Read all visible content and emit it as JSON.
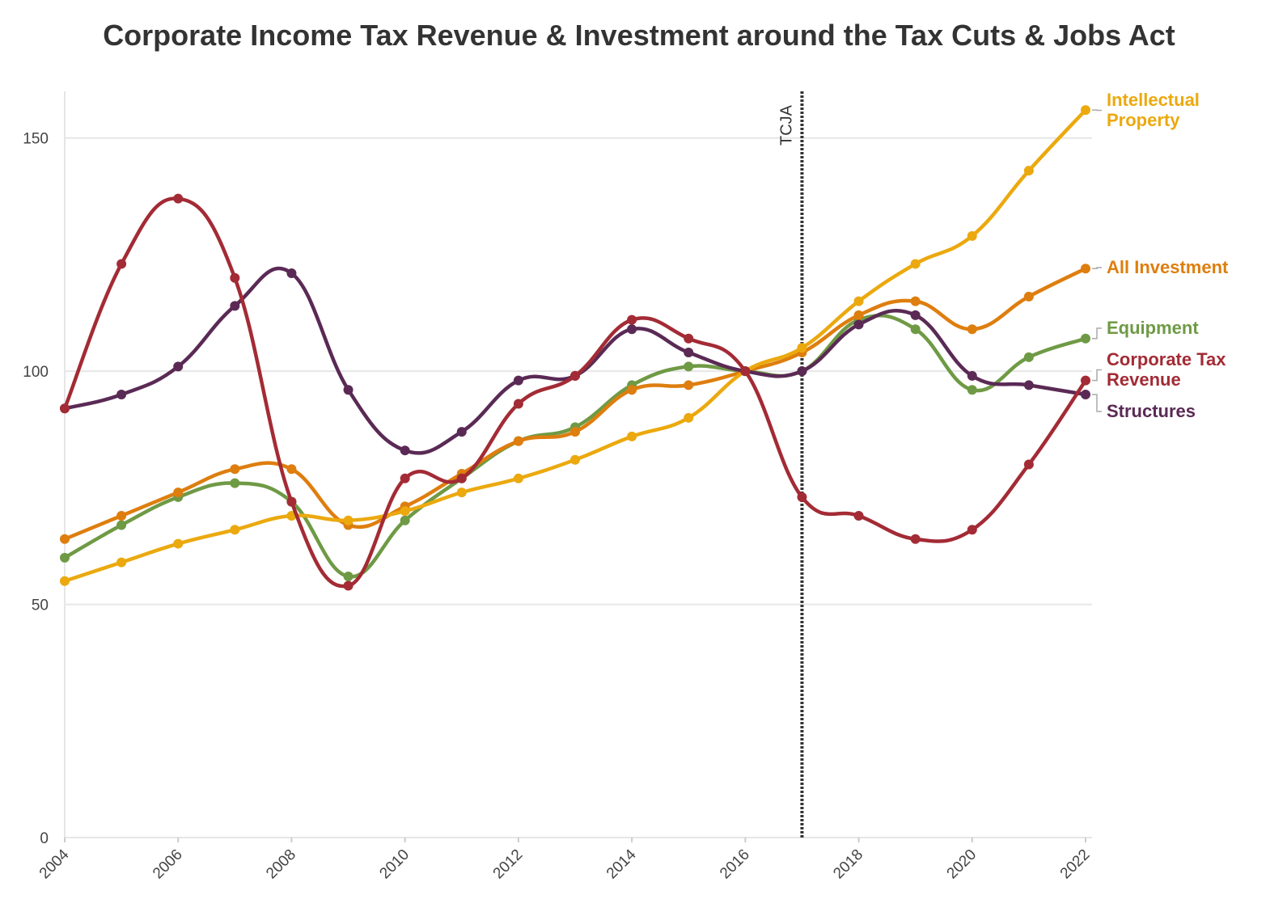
{
  "chart_data": {
    "type": "line",
    "title": "Corporate Income Tax Revenue & Investment around the Tax Cuts & Jobs Act",
    "xlabel": "",
    "ylabel": "",
    "x": [
      2004,
      2005,
      2006,
      2007,
      2008,
      2009,
      2010,
      2011,
      2012,
      2013,
      2014,
      2015,
      2016,
      2017,
      2018,
      2019,
      2020,
      2021,
      2022
    ],
    "xlim": [
      2004,
      2022
    ],
    "ylim": [
      0,
      160
    ],
    "x_ticks": [
      "2004",
      "2006",
      "2008",
      "2010",
      "2012",
      "2014",
      "2016",
      "2018",
      "2020",
      "2022"
    ],
    "y_ticks": [
      "0",
      "50",
      "100",
      "150"
    ],
    "grid": true,
    "legend": "direct labels at right end of lines",
    "annotations": [
      {
        "text": "TCJA",
        "x": 2017,
        "style": "dotted vertical line"
      }
    ],
    "series": [
      {
        "name": "Equipment",
        "label_lines": [
          "Equipment"
        ],
        "color": "#6f9a45",
        "values": [
          60,
          67,
          73,
          76,
          72,
          56,
          68,
          77,
          85,
          88,
          97,
          101,
          100,
          100,
          111,
          109,
          96,
          103,
          107
        ]
      },
      {
        "name": "All Investment",
        "label_lines": [
          "All Investment"
        ],
        "color": "#de7e0e",
        "values": [
          64,
          69,
          74,
          79,
          79,
          67,
          71,
          78,
          85,
          87,
          96,
          97,
          100,
          104,
          112,
          115,
          109,
          116,
          122
        ]
      },
      {
        "name": "Intellectual Property",
        "label_lines": [
          "Intellectual",
          "Property"
        ],
        "color": "#eba90e",
        "values": [
          55,
          59,
          63,
          66,
          69,
          68,
          70,
          74,
          77,
          81,
          86,
          90,
          100,
          105,
          115,
          123,
          129,
          143,
          156
        ]
      },
      {
        "name": "Structures",
        "label_lines": [
          "Structures"
        ],
        "color": "#5a2a55",
        "values": [
          92,
          95,
          101,
          114,
          121,
          96,
          83,
          87,
          98,
          99,
          109,
          104,
          100,
          100,
          110,
          112,
          99,
          97,
          95
        ]
      },
      {
        "name": "Corporate Tax Revenue",
        "label_lines": [
          "Corporate Tax",
          "Revenue"
        ],
        "color": "#a32b35",
        "values": [
          92,
          123,
          137,
          120,
          72,
          54,
          77,
          77,
          93,
          99,
          111,
          107,
          100,
          73,
          69,
          64,
          66,
          80,
          98
        ]
      }
    ]
  }
}
